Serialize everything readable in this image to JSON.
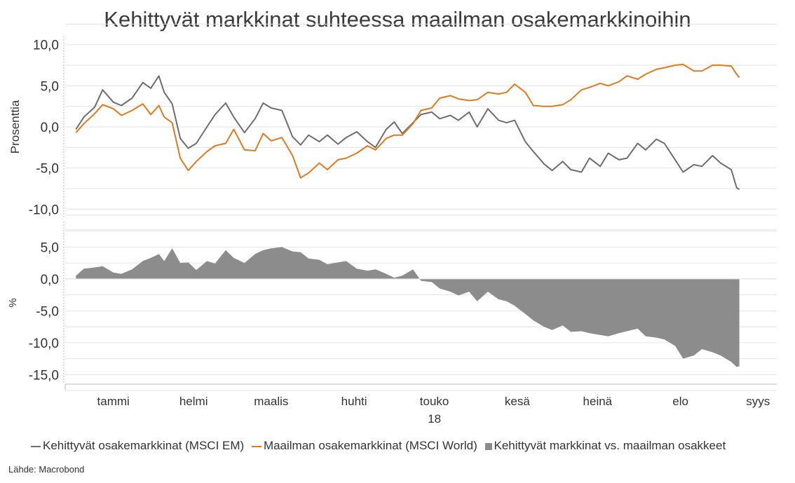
{
  "title": "Kehittyvät markkinat suhteessa maailman osakemarkkinoihin",
  "source": "Lähde: Macrobond",
  "legend": {
    "em": "Kehittyvät osakemarkkinat (MSCI EM)",
    "world": "Maailman osakemarkkinat (MSCI World)",
    "diff": "Kehittyvät markkinat vs. maailman osakkeet"
  },
  "colors": {
    "em": "#6e6e6e",
    "world": "#e07a1f",
    "diff": "#8c8c8c",
    "grid": "#e2e2e2",
    "axis": "#bdbdbd"
  },
  "chart_data": [
    {
      "type": "line",
      "ylabel": "Prosenttia",
      "ylim": [
        -11,
        11
      ],
      "yticks": [
        10,
        5,
        0,
        -5,
        -10
      ],
      "ytick_labels": [
        "10,0",
        "5,0",
        "0,0",
        "-5,0",
        "-10,0"
      ],
      "x_months": [
        "tammi",
        "helmi",
        "maalis",
        "huhti",
        "touko",
        "kesä",
        "heinä",
        "elo",
        "syys"
      ],
      "x_year": "18",
      "grid": true,
      "series": [
        {
          "name": "Kehittyvät osakemarkkinat (MSCI EM)",
          "color": "#6e6e6e",
          "points": [
            [
              "2018-01-01",
              -0.3
            ],
            [
              "2018-01-04",
              1.2
            ],
            [
              "2018-01-08",
              2.4
            ],
            [
              "2018-01-11",
              4.5
            ],
            [
              "2018-01-15",
              3.0
            ],
            [
              "2018-01-18",
              2.6
            ],
            [
              "2018-01-22",
              3.5
            ],
            [
              "2018-01-26",
              5.4
            ],
            [
              "2018-01-29",
              4.7
            ],
            [
              "2018-02-01",
              6.2
            ],
            [
              "2018-02-03",
              4.2
            ],
            [
              "2018-02-06",
              2.8
            ],
            [
              "2018-02-09",
              -1.4
            ],
            [
              "2018-02-12",
              -2.6
            ],
            [
              "2018-02-15",
              -2.0
            ],
            [
              "2018-02-19",
              0.0
            ],
            [
              "2018-02-22",
              1.5
            ],
            [
              "2018-02-26",
              2.9
            ],
            [
              "2018-03-01",
              1.2
            ],
            [
              "2018-03-05",
              -0.7
            ],
            [
              "2018-03-09",
              1.0
            ],
            [
              "2018-03-12",
              2.9
            ],
            [
              "2018-03-15",
              2.3
            ],
            [
              "2018-03-19",
              2.0
            ],
            [
              "2018-03-23",
              -1.2
            ],
            [
              "2018-03-26",
              -2.2
            ],
            [
              "2018-03-29",
              -1.0
            ],
            [
              "2018-04-02",
              -1.8
            ],
            [
              "2018-04-05",
              -1.0
            ],
            [
              "2018-04-09",
              -2.1
            ],
            [
              "2018-04-12",
              -1.3
            ],
            [
              "2018-04-16",
              -0.6
            ],
            [
              "2018-04-20",
              -1.8
            ],
            [
              "2018-04-23",
              -2.5
            ],
            [
              "2018-04-27",
              -0.3
            ],
            [
              "2018-04-30",
              0.6
            ],
            [
              "2018-05-03",
              -0.8
            ],
            [
              "2018-05-07",
              0.5
            ],
            [
              "2018-05-10",
              1.5
            ],
            [
              "2018-05-14",
              1.8
            ],
            [
              "2018-05-17",
              1.0
            ],
            [
              "2018-05-21",
              1.4
            ],
            [
              "2018-05-24",
              0.8
            ],
            [
              "2018-05-28",
              1.8
            ],
            [
              "2018-05-31",
              0.0
            ],
            [
              "2018-06-04",
              2.2
            ],
            [
              "2018-06-08",
              0.8
            ],
            [
              "2018-06-11",
              0.5
            ],
            [
              "2018-06-14",
              0.8
            ],
            [
              "2018-06-18",
              -1.8
            ],
            [
              "2018-06-21",
              -3.0
            ],
            [
              "2018-06-25",
              -4.5
            ],
            [
              "2018-06-28",
              -5.3
            ],
            [
              "2018-07-02",
              -4.2
            ],
            [
              "2018-07-05",
              -5.2
            ],
            [
              "2018-07-09",
              -5.5
            ],
            [
              "2018-07-12",
              -3.8
            ],
            [
              "2018-07-16",
              -4.8
            ],
            [
              "2018-07-19",
              -3.2
            ],
            [
              "2018-07-23",
              -4.0
            ],
            [
              "2018-07-26",
              -3.8
            ],
            [
              "2018-07-30",
              -2.0
            ],
            [
              "2018-08-02",
              -2.8
            ],
            [
              "2018-08-06",
              -1.5
            ],
            [
              "2018-08-09",
              -2.0
            ],
            [
              "2018-08-13",
              -4.0
            ],
            [
              "2018-08-16",
              -5.5
            ],
            [
              "2018-08-20",
              -4.6
            ],
            [
              "2018-08-23",
              -4.8
            ],
            [
              "2018-08-27",
              -3.5
            ],
            [
              "2018-08-30",
              -4.4
            ],
            [
              "2018-09-03",
              -5.2
            ],
            [
              "2018-09-05",
              -7.4
            ],
            [
              "2018-09-06",
              -7.6
            ]
          ]
        },
        {
          "name": "Maailman osakemarkkinat (MSCI World)",
          "color": "#e07a1f",
          "points": [
            [
              "2018-01-01",
              -0.7
            ],
            [
              "2018-01-04",
              0.4
            ],
            [
              "2018-01-08",
              1.6
            ],
            [
              "2018-01-11",
              2.7
            ],
            [
              "2018-01-15",
              2.2
            ],
            [
              "2018-01-18",
              1.4
            ],
            [
              "2018-01-22",
              2.0
            ],
            [
              "2018-01-26",
              2.8
            ],
            [
              "2018-01-29",
              1.5
            ],
            [
              "2018-02-01",
              2.6
            ],
            [
              "2018-02-03",
              1.2
            ],
            [
              "2018-02-06",
              0.5
            ],
            [
              "2018-02-09",
              -3.8
            ],
            [
              "2018-02-12",
              -5.3
            ],
            [
              "2018-02-15",
              -4.2
            ],
            [
              "2018-02-19",
              -3.0
            ],
            [
              "2018-02-22",
              -2.3
            ],
            [
              "2018-02-26",
              -2.0
            ],
            [
              "2018-03-01",
              -0.3
            ],
            [
              "2018-03-05",
              -2.8
            ],
            [
              "2018-03-09",
              -2.9
            ],
            [
              "2018-03-12",
              -0.8
            ],
            [
              "2018-03-15",
              -1.7
            ],
            [
              "2018-03-19",
              -1.3
            ],
            [
              "2018-03-23",
              -3.5
            ],
            [
              "2018-03-26",
              -6.2
            ],
            [
              "2018-03-29",
              -5.6
            ],
            [
              "2018-04-02",
              -4.4
            ],
            [
              "2018-04-05",
              -5.2
            ],
            [
              "2018-04-09",
              -4.0
            ],
            [
              "2018-04-12",
              -3.8
            ],
            [
              "2018-04-16",
              -3.2
            ],
            [
              "2018-04-20",
              -2.3
            ],
            [
              "2018-04-23",
              -2.8
            ],
            [
              "2018-04-27",
              -1.4
            ],
            [
              "2018-04-30",
              -1.0
            ],
            [
              "2018-05-03",
              -1.0
            ],
            [
              "2018-05-07",
              0.4
            ],
            [
              "2018-05-10",
              2.0
            ],
            [
              "2018-05-14",
              2.3
            ],
            [
              "2018-05-17",
              3.5
            ],
            [
              "2018-05-21",
              3.8
            ],
            [
              "2018-05-24",
              3.4
            ],
            [
              "2018-05-28",
              3.2
            ],
            [
              "2018-05-31",
              3.3
            ],
            [
              "2018-06-04",
              4.2
            ],
            [
              "2018-06-08",
              4.0
            ],
            [
              "2018-06-11",
              4.2
            ],
            [
              "2018-06-14",
              5.2
            ],
            [
              "2018-06-18",
              4.2
            ],
            [
              "2018-06-21",
              2.6
            ],
            [
              "2018-06-25",
              2.5
            ],
            [
              "2018-06-28",
              2.5
            ],
            [
              "2018-07-02",
              2.7
            ],
            [
              "2018-07-05",
              3.3
            ],
            [
              "2018-07-09",
              4.5
            ],
            [
              "2018-07-12",
              4.8
            ],
            [
              "2018-07-16",
              5.3
            ],
            [
              "2018-07-19",
              5.0
            ],
            [
              "2018-07-23",
              5.5
            ],
            [
              "2018-07-26",
              6.2
            ],
            [
              "2018-07-30",
              5.8
            ],
            [
              "2018-08-02",
              6.4
            ],
            [
              "2018-08-06",
              7.0
            ],
            [
              "2018-08-09",
              7.2
            ],
            [
              "2018-08-13",
              7.5
            ],
            [
              "2018-08-16",
              7.6
            ],
            [
              "2018-08-20",
              6.8
            ],
            [
              "2018-08-23",
              6.8
            ],
            [
              "2018-08-27",
              7.5
            ],
            [
              "2018-08-30",
              7.5
            ],
            [
              "2018-09-03",
              7.4
            ],
            [
              "2018-09-05",
              6.4
            ],
            [
              "2018-09-06",
              6.0
            ]
          ]
        }
      ]
    },
    {
      "type": "area",
      "ylabel": "%",
      "ylim": [
        -16.5,
        9
      ],
      "yticks": [
        5,
        0,
        -5,
        -10,
        -15
      ],
      "ytick_labels": [
        "5,0",
        "0,0",
        "-5,0",
        "-10,0",
        "-15,0"
      ],
      "x_months": [
        "tammi",
        "helmi",
        "maalis",
        "huhti",
        "touko",
        "kesä",
        "heinä",
        "elo",
        "syys"
      ],
      "x_year": "18",
      "grid": true,
      "series": [
        {
          "name": "Kehittyvät markkinat vs. maailman osakkeet",
          "color": "#8c8c8c",
          "points": [
            [
              "2018-01-01",
              0.5
            ],
            [
              "2018-01-04",
              1.6
            ],
            [
              "2018-01-08",
              1.8
            ],
            [
              "2018-01-11",
              2.0
            ],
            [
              "2018-01-15",
              1.0
            ],
            [
              "2018-01-18",
              0.8
            ],
            [
              "2018-01-22",
              1.5
            ],
            [
              "2018-01-26",
              2.8
            ],
            [
              "2018-01-29",
              3.3
            ],
            [
              "2018-02-01",
              3.9
            ],
            [
              "2018-02-03",
              2.8
            ],
            [
              "2018-02-06",
              4.8
            ],
            [
              "2018-02-09",
              2.5
            ],
            [
              "2018-02-12",
              2.6
            ],
            [
              "2018-02-15",
              1.4
            ],
            [
              "2018-02-19",
              2.8
            ],
            [
              "2018-02-22",
              2.4
            ],
            [
              "2018-02-26",
              4.5
            ],
            [
              "2018-03-01",
              3.3
            ],
            [
              "2018-03-05",
              2.5
            ],
            [
              "2018-03-09",
              3.9
            ],
            [
              "2018-03-12",
              4.5
            ],
            [
              "2018-03-15",
              4.8
            ],
            [
              "2018-03-19",
              5.0
            ],
            [
              "2018-03-23",
              4.3
            ],
            [
              "2018-03-26",
              4.2
            ],
            [
              "2018-03-29",
              3.2
            ],
            [
              "2018-04-02",
              3.0
            ],
            [
              "2018-04-05",
              2.3
            ],
            [
              "2018-04-09",
              2.6
            ],
            [
              "2018-04-12",
              2.8
            ],
            [
              "2018-04-16",
              1.6
            ],
            [
              "2018-04-20",
              1.3
            ],
            [
              "2018-04-23",
              1.5
            ],
            [
              "2018-04-27",
              0.8
            ],
            [
              "2018-04-30",
              0.2
            ],
            [
              "2018-05-03",
              0.5
            ],
            [
              "2018-05-07",
              1.5
            ],
            [
              "2018-05-10",
              -0.3
            ],
            [
              "2018-05-14",
              -0.5
            ],
            [
              "2018-05-17",
              -1.5
            ],
            [
              "2018-05-21",
              -2.0
            ],
            [
              "2018-05-24",
              -2.6
            ],
            [
              "2018-05-28",
              -2.0
            ],
            [
              "2018-05-31",
              -3.5
            ],
            [
              "2018-06-04",
              -2.0
            ],
            [
              "2018-06-08",
              -3.2
            ],
            [
              "2018-06-11",
              -3.5
            ],
            [
              "2018-06-14",
              -4.2
            ],
            [
              "2018-06-18",
              -5.5
            ],
            [
              "2018-06-21",
              -6.5
            ],
            [
              "2018-06-25",
              -7.5
            ],
            [
              "2018-06-28",
              -8.0
            ],
            [
              "2018-07-02",
              -7.3
            ],
            [
              "2018-07-05",
              -8.3
            ],
            [
              "2018-07-09",
              -8.2
            ],
            [
              "2018-07-12",
              -8.5
            ],
            [
              "2018-07-16",
              -8.8
            ],
            [
              "2018-07-19",
              -9.0
            ],
            [
              "2018-07-23",
              -8.5
            ],
            [
              "2018-07-26",
              -8.2
            ],
            [
              "2018-07-30",
              -7.8
            ],
            [
              "2018-08-02",
              -9.0
            ],
            [
              "2018-08-06",
              -9.2
            ],
            [
              "2018-08-09",
              -9.5
            ],
            [
              "2018-08-13",
              -10.5
            ],
            [
              "2018-08-16",
              -12.5
            ],
            [
              "2018-08-20",
              -12.0
            ],
            [
              "2018-08-23",
              -11.0
            ],
            [
              "2018-08-27",
              -11.5
            ],
            [
              "2018-08-30",
              -12.0
            ],
            [
              "2018-09-03",
              -13.0
            ],
            [
              "2018-09-05",
              -13.8
            ],
            [
              "2018-09-06",
              -13.7
            ]
          ]
        }
      ]
    }
  ]
}
